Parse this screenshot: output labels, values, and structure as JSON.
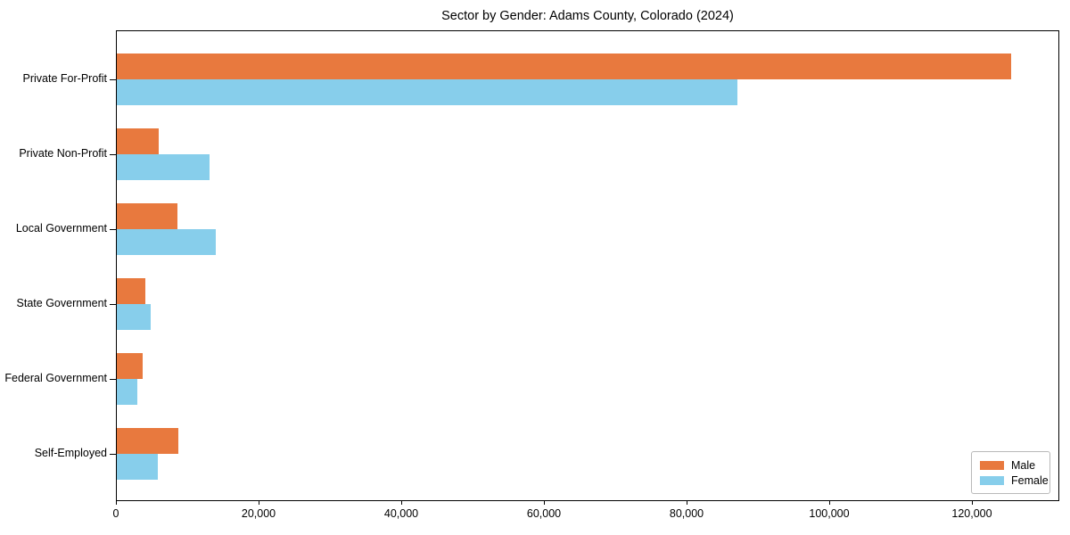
{
  "title": "Sector by Gender: Adams County, Colorado (2024)",
  "colors": {
    "male": "#e8793e",
    "female": "#87ceeb",
    "axis": "#000000",
    "background": "#ffffff",
    "legend_border": "#b9b9b9"
  },
  "chart_data": {
    "type": "bar",
    "orientation": "horizontal",
    "title": "Sector by Gender: Adams County, Colorado (2024)",
    "xlabel": "",
    "ylabel": "",
    "grid": false,
    "legend_position": "lower right",
    "categories": [
      "Private For-Profit",
      "Private Non-Profit",
      "Local Government",
      "State Government",
      "Federal Government",
      "Self-Employed"
    ],
    "series": [
      {
        "name": "Male",
        "color_key": "male",
        "values": [
          125600,
          5900,
          8500,
          4000,
          3600,
          8600
        ]
      },
      {
        "name": "Female",
        "color_key": "female",
        "values": [
          87200,
          13000,
          13900,
          4750,
          2900,
          5800
        ]
      }
    ],
    "xlim": [
      0,
      132250
    ],
    "x_ticks": [
      0,
      20000,
      40000,
      60000,
      80000,
      100000,
      120000
    ],
    "x_tick_labels": [
      "0",
      "20,000",
      "40,000",
      "60,000",
      "80,000",
      "100,000",
      "120,000"
    ]
  }
}
